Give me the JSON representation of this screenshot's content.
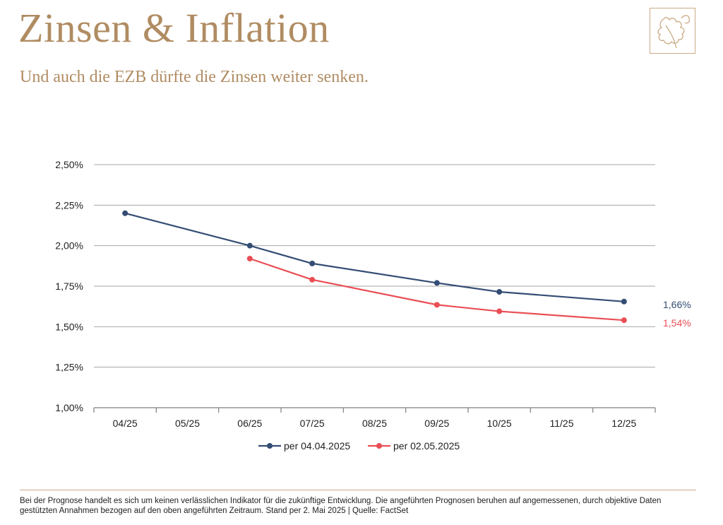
{
  "header": {
    "title": "Zinsen & Inflation",
    "subtitle": "Und auch die EZB dürfte die Zinsen weiter senken."
  },
  "chart_data": {
    "type": "line",
    "categories": [
      "04/25",
      "05/25",
      "06/25",
      "07/25",
      "08/25",
      "09/25",
      "10/25",
      "11/25",
      "12/25"
    ],
    "y_ticks": [
      1.0,
      1.25,
      1.5,
      1.75,
      2.0,
      2.25,
      2.5
    ],
    "y_tick_labels": [
      "1,00%",
      "1,25%",
      "1,50%",
      "1,75%",
      "2,00%",
      "2,25%",
      "2,50%"
    ],
    "ylim": [
      1.0,
      2.5
    ],
    "grid": true,
    "legend_position": "bottom",
    "series": [
      {
        "name": "per 04.04.2025",
        "color": "#344d74",
        "values": [
          2.2,
          null,
          2.0,
          1.89,
          null,
          1.77,
          1.715,
          null,
          1.655
        ],
        "end_label": "1,66%"
      },
      {
        "name": "per 02.05.2025",
        "color": "#ea4e55",
        "values": [
          null,
          null,
          1.92,
          1.79,
          null,
          1.635,
          1.595,
          null,
          1.54
        ],
        "end_label": "1,54%"
      }
    ]
  },
  "footer": {
    "disclaimer": "Bei der Prognose handelt es sich um keinen verlässlichen Indikator für die zukünftige Entwicklung. Die angeführten Prognosen beruhen auf angemessenen, durch objektive Daten gestützten Annahmen bezogen auf den oben angeführten Zeitraum. Stand per 2. Mai 2025 | Quelle: FactSet"
  }
}
